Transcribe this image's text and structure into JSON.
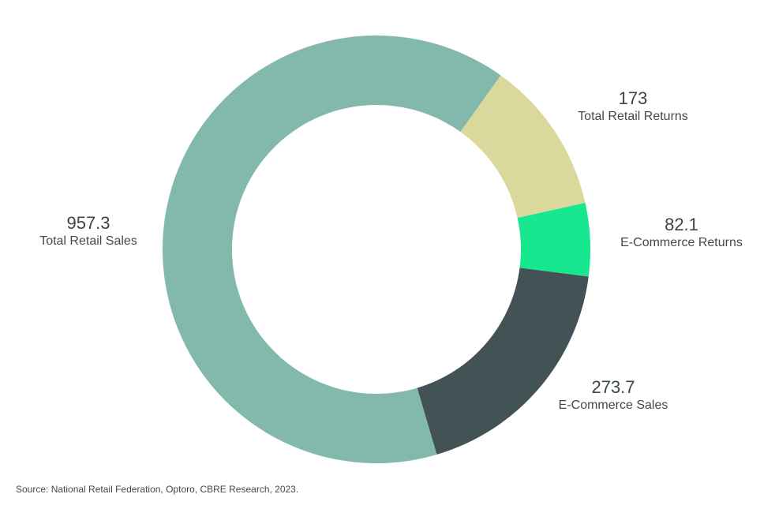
{
  "chart_data": {
    "type": "pie",
    "categories": [
      "Total Retail Sales",
      "Total Retail Returns",
      "E-Commerce Returns",
      "E-Commerce Sales"
    ],
    "values": [
      957.3,
      173,
      82.1,
      273.7
    ],
    "value_labels": [
      "957.3",
      "173",
      "82.1",
      "273.7"
    ],
    "colors": [
      "#83b9ac",
      "#dbd89c",
      "#17e88f",
      "#435254"
    ],
    "donut": true,
    "legend": "none",
    "source": "Source: National Retail Federation, Optoro, CBRE Research, 2023."
  }
}
